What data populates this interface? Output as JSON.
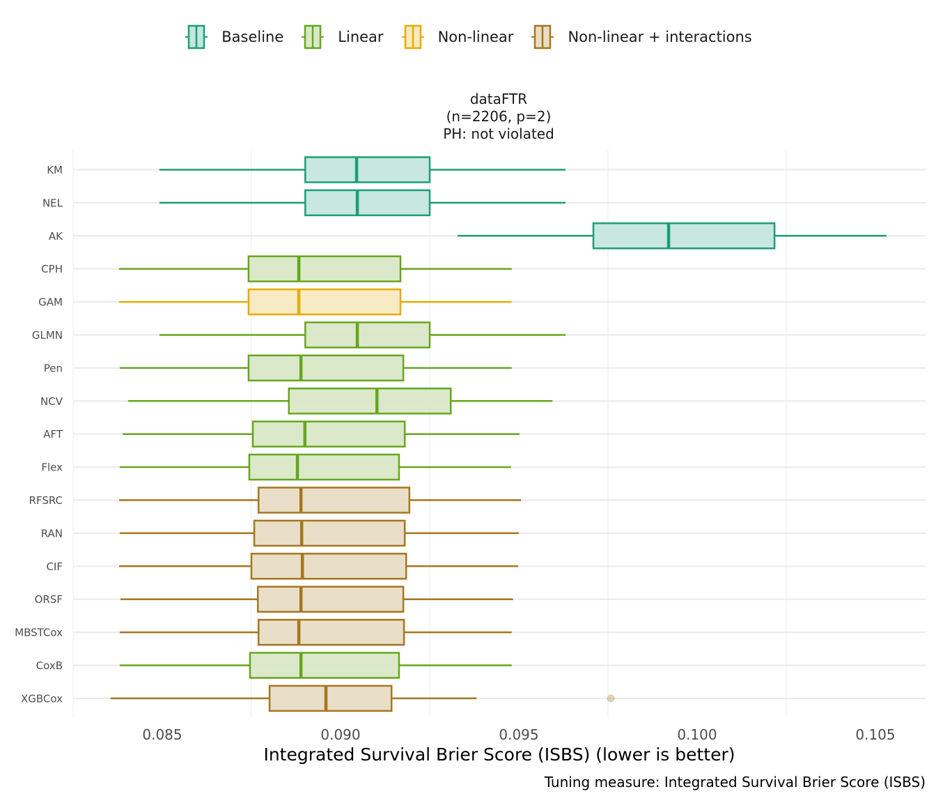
{
  "legend": {
    "items": [
      {
        "label": "Baseline",
        "stroke": "#1b9e77",
        "fill": "#c5e6dc"
      },
      {
        "label": "Linear",
        "stroke": "#66a61e",
        "fill": "#d9e8c7"
      },
      {
        "label": "Non-linear",
        "stroke": "#e6ab02",
        "fill": "#f8e9c0"
      },
      {
        "label": "Non-linear + interactions",
        "stroke": "#a6761d",
        "fill": "#e8dcc5"
      }
    ]
  },
  "facet": {
    "title_line1": "dataFTR",
    "title_line2": "(n=2206, p=2)",
    "title_line3": "PH: not violated"
  },
  "caption": "Tuning measure: Integrated Survival Brier Score (ISBS)",
  "chart_data": {
    "type": "boxplot",
    "orientation": "horizontal",
    "xlabel": "Integrated Survival Brier Score (ISBS) (lower is better)",
    "ylabel": "",
    "xlim": [
      0.0825,
      0.1065
    ],
    "x_ticks": [
      0.085,
      0.09,
      0.095,
      0.1,
      0.105
    ],
    "x_tick_labels": [
      "0.085",
      "0.090",
      "0.095",
      "0.100",
      "0.105"
    ],
    "grid": true,
    "legend_position": "top",
    "categories": [
      "KM",
      "NEL",
      "AK",
      "CPH",
      "GAM",
      "GLMN",
      "Pen",
      "NCV",
      "AFT",
      "Flex",
      "RFSRC",
      "RAN",
      "CIF",
      "ORSF",
      "MBSTCox",
      "CoxB",
      "XGBCox"
    ],
    "groups": [
      "Baseline",
      "Baseline",
      "Baseline",
      "Linear",
      "Non-linear",
      "Linear",
      "Linear",
      "Linear",
      "Linear",
      "Linear",
      "Non-linear + interactions",
      "Non-linear + interactions",
      "Non-linear + interactions",
      "Non-linear + interactions",
      "Non-linear + interactions",
      "Linear",
      "Non-linear + interactions"
    ],
    "boxes": [
      {
        "min": 0.08492,
        "q1": 0.08901,
        "median": 0.09045,
        "q3": 0.0925,
        "max": 0.09631,
        "outliers": []
      },
      {
        "min": 0.08492,
        "q1": 0.08901,
        "median": 0.09047,
        "q3": 0.0925,
        "max": 0.09631,
        "outliers": []
      },
      {
        "min": 0.09328,
        "q1": 0.09709,
        "median": 0.0992,
        "q3": 0.10217,
        "max": 0.10531,
        "outliers": []
      },
      {
        "min": 0.08379,
        "q1": 0.08742,
        "median": 0.08883,
        "q3": 0.09168,
        "max": 0.0948,
        "outliers": []
      },
      {
        "min": 0.08379,
        "q1": 0.08742,
        "median": 0.08883,
        "q3": 0.09168,
        "max": 0.0948,
        "outliers": []
      },
      {
        "min": 0.08492,
        "q1": 0.08901,
        "median": 0.09047,
        "q3": 0.0925,
        "max": 0.09631,
        "outliers": []
      },
      {
        "min": 0.08381,
        "q1": 0.08742,
        "median": 0.08889,
        "q3": 0.09176,
        "max": 0.0948,
        "outliers": []
      },
      {
        "min": 0.08404,
        "q1": 0.08855,
        "median": 0.09102,
        "q3": 0.09309,
        "max": 0.09594,
        "outliers": []
      },
      {
        "min": 0.08389,
        "q1": 0.08754,
        "median": 0.089,
        "q3": 0.0918,
        "max": 0.09502,
        "outliers": []
      },
      {
        "min": 0.08381,
        "q1": 0.08744,
        "median": 0.08879,
        "q3": 0.09164,
        "max": 0.09478,
        "outliers": []
      },
      {
        "min": 0.08379,
        "q1": 0.0877,
        "median": 0.08889,
        "q3": 0.09193,
        "max": 0.09506,
        "outliers": []
      },
      {
        "min": 0.08381,
        "q1": 0.08758,
        "median": 0.08891,
        "q3": 0.0918,
        "max": 0.095,
        "outliers": []
      },
      {
        "min": 0.08379,
        "q1": 0.0875,
        "median": 0.08893,
        "q3": 0.09184,
        "max": 0.09498,
        "outliers": []
      },
      {
        "min": 0.08383,
        "q1": 0.08768,
        "median": 0.08889,
        "q3": 0.09176,
        "max": 0.09484,
        "outliers": []
      },
      {
        "min": 0.08381,
        "q1": 0.0877,
        "median": 0.08883,
        "q3": 0.09178,
        "max": 0.0948,
        "outliers": []
      },
      {
        "min": 0.08381,
        "q1": 0.08746,
        "median": 0.08889,
        "q3": 0.09164,
        "max": 0.0948,
        "outliers": []
      },
      {
        "min": 0.08355,
        "q1": 0.08801,
        "median": 0.08959,
        "q3": 0.09143,
        "max": 0.09381,
        "outliers": [
          0.09758
        ]
      }
    ]
  }
}
